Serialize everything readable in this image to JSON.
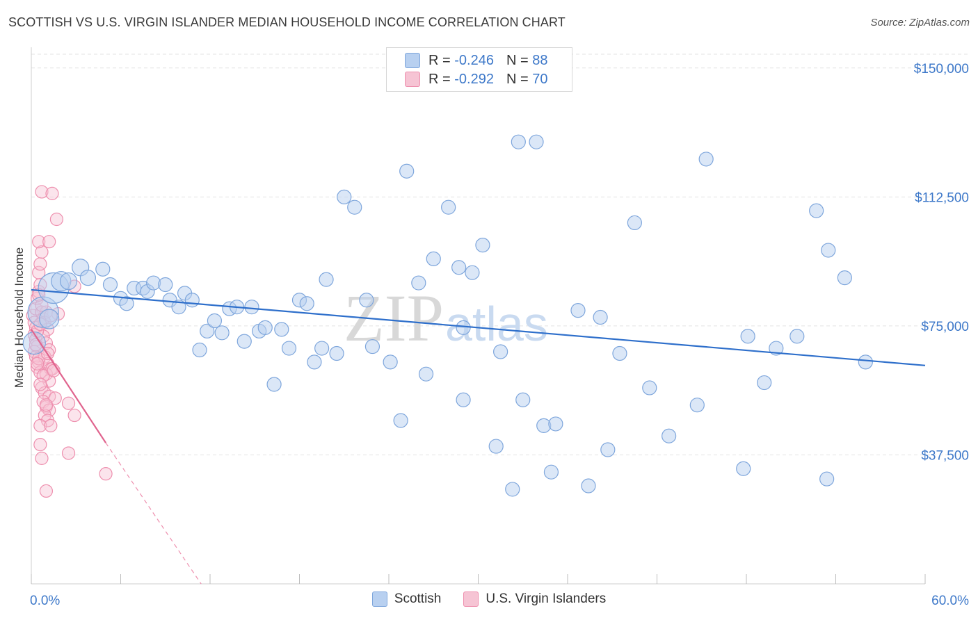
{
  "title": "SCOTTISH VS U.S. VIRGIN ISLANDER MEDIAN HOUSEHOLD INCOME CORRELATION CHART",
  "source": "Source: ZipAtlas.com",
  "watermark": {
    "zip": "ZIP",
    "atlas": "atlas"
  },
  "legend": {
    "r_label": "R = ",
    "n_label": "N = ",
    "scottish_r": "-0.246",
    "scottish_n": "88",
    "usvi_r": "-0.292",
    "usvi_n": "70"
  },
  "bottom_legend": {
    "scottish": "Scottish",
    "usvi": "U.S. Virgin Islanders"
  },
  "colors": {
    "scottish_fill": "#b8d0f0",
    "scottish_stroke": "#7ea6dc",
    "scottish_line": "#2e6fcb",
    "usvi_fill": "#f6c4d4",
    "usvi_stroke": "#ee8fae",
    "usvi_line": "#e0648e",
    "tick_label": "#3d78c9",
    "grid": "#e3e3e3"
  },
  "chart_data": {
    "type": "scatter",
    "xlabel": "",
    "ylabel": "Median Household Income",
    "x_tick_labels": [
      "0.0%",
      "60.0%"
    ],
    "y_tick_labels": [
      "$37,500",
      "$75,000",
      "$112,500",
      "$150,000"
    ],
    "xlim": [
      0,
      60
    ],
    "ylim": [
      0,
      154000
    ],
    "y_ticks": [
      37500,
      75000,
      112500,
      150000
    ],
    "grid": true,
    "legend_position": "top-center",
    "series": [
      {
        "name": "Scottish",
        "R": -0.246,
        "N": 88,
        "trend": {
          "x0": 0,
          "y0": 85500,
          "x1": 60,
          "y1": 63500
        },
        "points": [
          [
            0.2,
            70000,
            16
          ],
          [
            0.8,
            79000,
            22
          ],
          [
            1.2,
            77000,
            14
          ],
          [
            1.5,
            86000,
            22
          ],
          [
            2.0,
            88000,
            14
          ],
          [
            2.5,
            88000,
            12
          ],
          [
            3.3,
            92000,
            12
          ],
          [
            3.8,
            89000,
            11
          ],
          [
            4.8,
            91500,
            10
          ],
          [
            5.3,
            87000,
            10
          ],
          [
            6.0,
            83000,
            10
          ],
          [
            6.4,
            81500,
            10
          ],
          [
            6.9,
            86000,
            10
          ],
          [
            7.5,
            86000,
            10
          ],
          [
            7.8,
            85000,
            10
          ],
          [
            8.2,
            87500,
            10
          ],
          [
            9.0,
            87000,
            10
          ],
          [
            9.3,
            82500,
            10
          ],
          [
            9.9,
            80500,
            10
          ],
          [
            10.3,
            84500,
            10
          ],
          [
            10.8,
            82500,
            10
          ],
          [
            11.3,
            68000,
            10
          ],
          [
            11.8,
            73500,
            10
          ],
          [
            12.3,
            76500,
            10
          ],
          [
            12.8,
            73000,
            10
          ],
          [
            13.3,
            80000,
            10
          ],
          [
            13.8,
            80500,
            10
          ],
          [
            14.3,
            70500,
            10
          ],
          [
            14.8,
            80500,
            10
          ],
          [
            15.3,
            73500,
            10
          ],
          [
            15.7,
            74500,
            10
          ],
          [
            16.3,
            58000,
            10
          ],
          [
            16.8,
            74000,
            10
          ],
          [
            17.3,
            68500,
            10
          ],
          [
            18.0,
            82500,
            10
          ],
          [
            18.5,
            81500,
            10
          ],
          [
            19.0,
            64500,
            10
          ],
          [
            19.5,
            68500,
            10
          ],
          [
            19.8,
            88500,
            10
          ],
          [
            20.5,
            67000,
            10
          ],
          [
            21.0,
            112500,
            10
          ],
          [
            21.7,
            109500,
            10
          ],
          [
            22.5,
            82500,
            10
          ],
          [
            22.9,
            69000,
            10
          ],
          [
            24.1,
            64500,
            10
          ],
          [
            24.8,
            47500,
            10
          ],
          [
            25.2,
            120000,
            10
          ],
          [
            26.0,
            87500,
            10
          ],
          [
            26.5,
            61000,
            10
          ],
          [
            27.0,
            94500,
            10
          ],
          [
            28.0,
            109500,
            10
          ],
          [
            28.7,
            92000,
            10
          ],
          [
            29.0,
            53500,
            10
          ],
          [
            29.0,
            74500,
            10
          ],
          [
            29.6,
            90500,
            10
          ],
          [
            30.3,
            98500,
            10
          ],
          [
            31.2,
            40000,
            10
          ],
          [
            31.5,
            67500,
            10
          ],
          [
            32.3,
            27500,
            10
          ],
          [
            32.7,
            128500,
            10
          ],
          [
            33.0,
            53500,
            10
          ],
          [
            33.9,
            128500,
            10
          ],
          [
            34.4,
            46000,
            10
          ],
          [
            34.9,
            32500,
            10
          ],
          [
            35.2,
            46500,
            10
          ],
          [
            36.7,
            79500,
            10
          ],
          [
            37.4,
            28500,
            10
          ],
          [
            38.2,
            77500,
            10
          ],
          [
            38.7,
            39000,
            10
          ],
          [
            39.5,
            67000,
            10
          ],
          [
            40.5,
            105000,
            10
          ],
          [
            41.5,
            57000,
            10
          ],
          [
            42.8,
            43000,
            10
          ],
          [
            44.7,
            52000,
            10
          ],
          [
            45.3,
            123500,
            10
          ],
          [
            47.8,
            33500,
            10
          ],
          [
            48.1,
            72000,
            10
          ],
          [
            49.2,
            58500,
            10
          ],
          [
            50.0,
            68500,
            10
          ],
          [
            51.4,
            72000,
            10
          ],
          [
            52.7,
            108500,
            10
          ],
          [
            53.4,
            30500,
            10
          ],
          [
            53.5,
            97000,
            10
          ],
          [
            54.6,
            89000,
            10
          ],
          [
            56.0,
            64500,
            10
          ]
        ]
      },
      {
        "name": "U.S. Virgin Islanders",
        "R": -0.292,
        "N": 70,
        "trend": {
          "x0": 0,
          "y0": 74000,
          "x1": 5.0,
          "y1": 41000,
          "dash_x1": 11.4,
          "dash_y1": 0
        },
        "points": [
          [
            0.1,
            78000,
            9
          ],
          [
            0.2,
            76000,
            9
          ],
          [
            0.3,
            74500,
            9
          ],
          [
            0.2,
            72500,
            9
          ],
          [
            0.3,
            71000,
            9
          ],
          [
            0.4,
            69000,
            9
          ],
          [
            0.2,
            67500,
            9
          ],
          [
            0.3,
            66000,
            9
          ],
          [
            0.5,
            64500,
            9
          ],
          [
            0.4,
            63000,
            9
          ],
          [
            0.6,
            61500,
            9
          ],
          [
            0.3,
            80000,
            9
          ],
          [
            0.4,
            83000,
            9
          ],
          [
            0.5,
            85000,
            9
          ],
          [
            0.6,
            87000,
            9
          ],
          [
            0.5,
            90500,
            9
          ],
          [
            0.6,
            93000,
            9
          ],
          [
            0.7,
            96500,
            9
          ],
          [
            0.5,
            99500,
            9
          ],
          [
            1.2,
            99500,
            9
          ],
          [
            1.7,
            106000,
            9
          ],
          [
            0.7,
            114000,
            9
          ],
          [
            1.4,
            113500,
            9
          ],
          [
            0.7,
            79000,
            9
          ],
          [
            0.8,
            77000,
            9
          ],
          [
            1.0,
            79000,
            9
          ],
          [
            0.9,
            76000,
            9
          ],
          [
            1.1,
            74000,
            9
          ],
          [
            0.8,
            72000,
            9
          ],
          [
            1.0,
            70000,
            9
          ],
          [
            1.2,
            68000,
            9
          ],
          [
            0.9,
            66000,
            9
          ],
          [
            1.1,
            64000,
            9
          ],
          [
            1.3,
            62500,
            9
          ],
          [
            1.0,
            61000,
            9
          ],
          [
            1.2,
            59000,
            9
          ],
          [
            0.7,
            57000,
            9
          ],
          [
            0.9,
            55500,
            9
          ],
          [
            1.2,
            54500,
            9
          ],
          [
            1.6,
            54000,
            9
          ],
          [
            0.8,
            53000,
            9
          ],
          [
            1.0,
            51500,
            9
          ],
          [
            1.2,
            50500,
            9
          ],
          [
            0.9,
            49000,
            9
          ],
          [
            1.1,
            47500,
            9
          ],
          [
            0.6,
            46000,
            9
          ],
          [
            1.3,
            46000,
            9
          ],
          [
            0.6,
            40500,
            9
          ],
          [
            2.5,
            52500,
            9
          ],
          [
            2.9,
            49000,
            9
          ],
          [
            2.5,
            38000,
            9
          ],
          [
            0.7,
            36500,
            9
          ],
          [
            5.0,
            32000,
            9
          ],
          [
            1.0,
            27000,
            9
          ],
          [
            1.8,
            78500,
            9
          ],
          [
            2.9,
            86500,
            9
          ],
          [
            1.4,
            62500,
            9
          ],
          [
            0.5,
            65500,
            9
          ],
          [
            0.4,
            73500,
            9
          ],
          [
            0.6,
            75500,
            9
          ],
          [
            0.8,
            60500,
            9
          ],
          [
            1.5,
            62000,
            9
          ],
          [
            1.1,
            67000,
            9
          ],
          [
            0.3,
            69500,
            9
          ],
          [
            0.7,
            81000,
            9
          ],
          [
            0.5,
            84000,
            9
          ],
          [
            1.3,
            78000,
            9
          ],
          [
            0.6,
            58000,
            9
          ],
          [
            1.0,
            52000,
            9
          ],
          [
            0.4,
            64000,
            9
          ]
        ]
      }
    ]
  }
}
